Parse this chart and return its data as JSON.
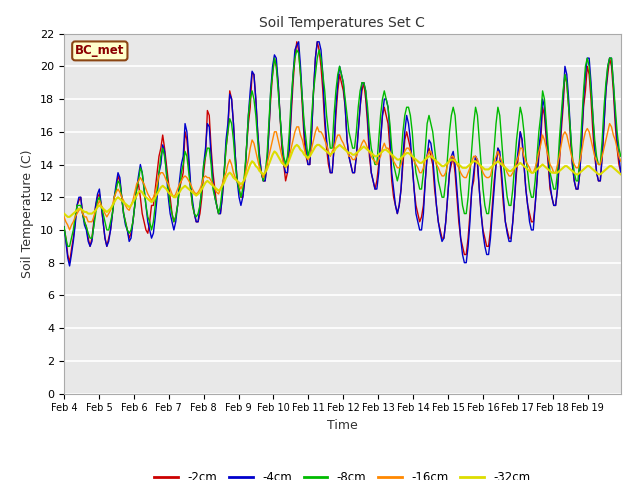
{
  "title": "Soil Temperatures Set C",
  "xlabel": "Time",
  "ylabel": "Soil Temperature (C)",
  "ylim": [
    0,
    22
  ],
  "yticks": [
    0,
    2,
    4,
    6,
    8,
    10,
    12,
    14,
    16,
    18,
    20,
    22
  ],
  "label_text": "BC_met",
  "fig_bg_color": "#ffffff",
  "plot_bg_color": "#e8e8e8",
  "line_colors": {
    "-2cm": "#cc0000",
    "-4cm": "#0000cc",
    "-8cm": "#00bb00",
    "-16cm": "#ff8800",
    "-32cm": "#dddd00"
  },
  "x_tick_labels": [
    "Feb 4",
    "Feb 5",
    "Feb 6",
    "Feb 7",
    "Feb 8",
    "Feb 9",
    "Feb 10",
    "Feb 11",
    "Feb 12",
    "Feb 13",
    "Feb 14",
    "Feb 15",
    "Feb 16",
    "Feb 17",
    "Feb 18",
    "Feb 19"
  ],
  "depth_2cm": [
    10.2,
    9.5,
    8.5,
    8.0,
    8.8,
    9.5,
    10.5,
    11.5,
    11.8,
    12.0,
    11.0,
    10.5,
    10.2,
    9.5,
    9.0,
    9.5,
    10.5,
    11.5,
    12.0,
    12.2,
    11.5,
    10.5,
    9.5,
    9.0,
    9.5,
    10.0,
    11.0,
    12.0,
    12.5,
    13.3,
    13.0,
    12.0,
    11.0,
    10.5,
    10.0,
    9.5,
    9.8,
    10.5,
    11.5,
    12.5,
    12.8,
    12.0,
    11.0,
    10.5,
    10.0,
    9.8,
    10.5,
    11.5,
    11.5,
    12.5,
    13.5,
    14.5,
    15.0,
    15.8,
    15.0,
    14.0,
    13.0,
    12.0,
    11.0,
    10.5,
    10.8,
    11.5,
    12.5,
    13.0,
    13.5,
    16.0,
    15.5,
    14.0,
    12.5,
    11.5,
    11.0,
    10.5,
    10.5,
    11.0,
    12.0,
    13.5,
    14.5,
    17.3,
    17.0,
    15.0,
    13.5,
    12.5,
    11.5,
    11.0,
    11.0,
    12.0,
    13.5,
    15.0,
    16.0,
    18.5,
    18.0,
    16.5,
    14.5,
    13.0,
    12.5,
    12.0,
    12.0,
    13.0,
    15.0,
    16.5,
    17.5,
    19.6,
    19.5,
    18.0,
    16.0,
    14.5,
    13.5,
    13.0,
    13.0,
    14.0,
    16.0,
    18.0,
    19.5,
    20.5,
    20.0,
    19.0,
    17.0,
    15.0,
    14.0,
    13.0,
    13.5,
    15.0,
    17.0,
    19.0,
    20.5,
    21.5,
    21.0,
    19.5,
    17.5,
    15.5,
    14.5,
    14.0,
    14.0,
    16.0,
    18.5,
    20.5,
    21.5,
    21.0,
    20.0,
    18.5,
    16.5,
    15.0,
    14.0,
    13.5,
    13.5,
    15.0,
    17.0,
    18.5,
    19.5,
    19.0,
    18.5,
    17.5,
    15.5,
    14.5,
    14.0,
    13.5,
    13.5,
    14.5,
    16.0,
    17.5,
    18.5,
    19.0,
    18.0,
    16.5,
    14.5,
    13.5,
    13.0,
    12.5,
    13.0,
    14.0,
    15.5,
    17.0,
    17.5,
    17.0,
    16.5,
    15.0,
    13.0,
    12.0,
    11.5,
    11.0,
    11.5,
    12.5,
    14.0,
    15.5,
    16.0,
    15.5,
    15.0,
    14.0,
    12.5,
    11.5,
    11.0,
    10.5,
    10.8,
    11.5,
    13.0,
    14.5,
    15.0,
    14.5,
    14.0,
    12.5,
    11.5,
    10.5,
    10.0,
    9.5,
    9.5,
    10.5,
    12.0,
    13.5,
    14.0,
    14.5,
    13.5,
    12.0,
    10.5,
    9.5,
    9.0,
    8.5,
    8.5,
    9.5,
    11.0,
    12.5,
    13.0,
    14.5,
    14.0,
    12.5,
    11.0,
    10.0,
    9.5,
    9.0,
    9.0,
    10.0,
    11.5,
    13.0,
    14.0,
    15.0,
    14.5,
    13.0,
    11.5,
    10.5,
    10.0,
    9.5,
    9.5,
    10.5,
    12.0,
    13.5,
    14.5,
    16.0,
    15.5,
    14.0,
    12.5,
    11.5,
    11.0,
    10.5,
    10.5,
    11.5,
    13.0,
    14.5,
    15.5,
    17.5,
    17.0,
    15.5,
    14.0,
    12.5,
    12.0,
    11.5,
    11.5,
    12.5,
    14.0,
    16.0,
    17.5,
    19.5,
    19.0,
    17.5,
    15.5,
    14.0,
    13.0,
    12.5,
    12.5,
    13.5,
    15.5,
    17.5,
    18.5,
    20.0,
    19.5,
    18.0,
    16.0,
    14.5,
    13.5,
    13.0,
    13.0,
    14.5,
    16.5,
    18.5,
    19.5,
    20.5,
    20.0,
    18.5,
    16.5,
    15.0,
    14.0,
    13.5
  ],
  "depth_4cm": [
    10.2,
    9.3,
    8.3,
    7.8,
    8.5,
    9.3,
    10.3,
    11.5,
    12.0,
    12.0,
    11.0,
    10.3,
    10.0,
    9.3,
    9.0,
    9.3,
    10.3,
    11.5,
    12.2,
    12.5,
    11.5,
    10.5,
    9.5,
    9.0,
    9.3,
    10.0,
    11.0,
    12.0,
    12.8,
    13.5,
    13.2,
    12.0,
    11.0,
    10.3,
    10.0,
    9.3,
    9.5,
    10.5,
    11.5,
    12.5,
    13.3,
    14.0,
    13.5,
    12.5,
    11.5,
    10.5,
    10.0,
    9.5,
    9.8,
    10.8,
    12.0,
    13.5,
    14.0,
    15.2,
    14.8,
    13.5,
    12.0,
    11.0,
    10.5,
    10.0,
    10.5,
    11.5,
    13.0,
    14.0,
    14.5,
    16.5,
    16.0,
    14.5,
    12.8,
    11.8,
    11.0,
    10.5,
    10.5,
    11.5,
    12.5,
    14.0,
    15.0,
    16.5,
    16.3,
    14.5,
    13.0,
    12.0,
    11.5,
    11.0,
    11.0,
    12.0,
    13.5,
    15.5,
    16.5,
    18.3,
    18.0,
    16.5,
    14.5,
    13.0,
    12.0,
    11.5,
    12.0,
    13.0,
    15.0,
    17.0,
    18.5,
    19.7,
    19.5,
    18.0,
    16.0,
    14.5,
    13.5,
    13.0,
    13.0,
    14.0,
    16.0,
    18.5,
    20.0,
    20.7,
    20.5,
    19.0,
    17.0,
    15.5,
    14.0,
    13.5,
    13.5,
    15.0,
    17.5,
    19.5,
    21.0,
    21.3,
    21.5,
    20.0,
    18.0,
    16.0,
    15.0,
    14.0,
    14.0,
    16.0,
    18.5,
    20.5,
    21.5,
    21.5,
    21.0,
    19.5,
    17.0,
    15.5,
    14.5,
    13.5,
    13.5,
    15.0,
    17.5,
    19.0,
    20.0,
    19.5,
    19.0,
    17.5,
    15.5,
    14.5,
    14.0,
    13.5,
    13.5,
    14.5,
    16.0,
    17.5,
    19.0,
    19.0,
    18.5,
    17.0,
    15.0,
    13.5,
    13.0,
    12.5,
    12.5,
    13.5,
    15.5,
    17.0,
    18.0,
    18.0,
    17.5,
    16.0,
    13.5,
    12.5,
    11.5,
    11.0,
    11.5,
    12.5,
    14.5,
    16.0,
    17.0,
    16.5,
    15.5,
    14.0,
    12.5,
    11.0,
    10.5,
    10.0,
    10.0,
    11.0,
    13.0,
    14.5,
    15.5,
    15.3,
    14.5,
    13.0,
    11.5,
    10.5,
    9.8,
    9.3,
    9.5,
    10.5,
    12.0,
    13.5,
    14.5,
    14.8,
    14.0,
    12.5,
    11.0,
    9.5,
    8.5,
    8.0,
    8.0,
    9.0,
    10.5,
    12.5,
    13.5,
    14.5,
    14.3,
    12.5,
    11.0,
    9.8,
    9.0,
    8.5,
    8.5,
    9.5,
    11.0,
    12.5,
    14.0,
    15.0,
    14.8,
    13.5,
    12.0,
    10.5,
    9.8,
    9.3,
    9.3,
    10.5,
    12.0,
    14.0,
    15.0,
    16.0,
    15.5,
    14.0,
    12.5,
    11.5,
    10.5,
    10.0,
    10.0,
    11.5,
    13.0,
    15.0,
    16.0,
    18.0,
    17.5,
    16.0,
    14.5,
    12.8,
    12.0,
    11.5,
    11.5,
    12.5,
    14.5,
    16.5,
    18.0,
    20.0,
    19.5,
    18.0,
    16.0,
    14.0,
    13.0,
    12.5,
    12.5,
    13.5,
    15.5,
    18.0,
    19.5,
    20.5,
    20.5,
    19.0,
    17.0,
    15.0,
    13.5,
    13.0,
    13.0,
    14.5,
    16.5,
    18.5,
    20.0,
    20.5,
    20.5,
    19.0,
    17.0,
    15.5,
    14.5,
    13.5
  ],
  "depth_8cm": [
    10.2,
    9.5,
    9.0,
    9.0,
    9.5,
    10.0,
    10.8,
    11.5,
    11.5,
    11.5,
    11.0,
    10.5,
    10.2,
    9.8,
    9.5,
    9.5,
    10.2,
    11.0,
    11.8,
    12.0,
    11.5,
    11.0,
    10.5,
    10.0,
    10.0,
    10.5,
    11.0,
    12.0,
    12.5,
    13.0,
    12.8,
    12.0,
    11.0,
    10.5,
    10.0,
    9.8,
    10.0,
    10.5,
    11.5,
    12.5,
    13.0,
    13.8,
    13.5,
    12.5,
    11.5,
    10.8,
    10.5,
    10.0,
    10.5,
    11.5,
    12.5,
    13.5,
    14.5,
    15.0,
    14.5,
    13.5,
    12.5,
    11.5,
    11.0,
    10.5,
    10.8,
    11.5,
    12.5,
    13.5,
    14.0,
    14.8,
    14.5,
    13.5,
    12.5,
    11.5,
    11.0,
    10.8,
    11.0,
    11.5,
    12.5,
    14.0,
    14.5,
    15.0,
    15.0,
    14.0,
    12.5,
    12.0,
    11.5,
    11.0,
    11.5,
    12.5,
    13.5,
    15.0,
    16.0,
    16.8,
    16.5,
    15.5,
    14.0,
    13.0,
    12.5,
    12.0,
    12.5,
    13.5,
    15.0,
    17.0,
    18.0,
    18.5,
    18.0,
    17.0,
    15.5,
    14.0,
    13.5,
    13.0,
    13.5,
    14.5,
    16.5,
    18.5,
    19.5,
    20.5,
    20.0,
    18.5,
    17.0,
    15.5,
    14.5,
    14.0,
    14.5,
    16.0,
    18.0,
    19.5,
    20.5,
    21.0,
    20.8,
    19.5,
    18.0,
    16.5,
    15.5,
    14.5,
    15.0,
    17.0,
    18.5,
    19.5,
    20.5,
    21.0,
    20.5,
    19.5,
    18.5,
    17.0,
    16.0,
    15.0,
    15.0,
    17.0,
    18.5,
    19.5,
    20.0,
    19.5,
    19.0,
    18.0,
    17.0,
    16.0,
    15.5,
    15.0,
    15.0,
    16.0,
    17.5,
    18.5,
    19.0,
    19.0,
    18.5,
    17.5,
    16.0,
    15.0,
    14.5,
    14.0,
    14.0,
    15.5,
    17.0,
    18.0,
    18.5,
    18.0,
    17.5,
    16.5,
    15.0,
    14.0,
    13.5,
    13.0,
    13.5,
    14.5,
    16.0,
    17.0,
    17.5,
    17.5,
    17.0,
    16.0,
    14.5,
    13.5,
    13.0,
    12.5,
    12.5,
    13.5,
    15.0,
    16.5,
    17.0,
    16.5,
    16.0,
    15.0,
    14.0,
    13.0,
    12.5,
    12.0,
    12.0,
    13.0,
    14.5,
    16.0,
    17.0,
    17.5,
    17.0,
    15.5,
    14.0,
    12.5,
    11.5,
    11.0,
    11.0,
    12.0,
    13.5,
    15.0,
    16.5,
    17.5,
    17.0,
    15.5,
    14.0,
    12.5,
    11.5,
    11.0,
    11.0,
    12.0,
    13.5,
    15.0,
    16.5,
    17.5,
    17.0,
    15.5,
    14.0,
    13.0,
    12.0,
    11.5,
    11.5,
    12.5,
    14.0,
    15.5,
    16.5,
    17.5,
    17.0,
    16.0,
    14.5,
    13.5,
    12.5,
    12.0,
    12.0,
    13.0,
    14.5,
    16.0,
    17.0,
    18.5,
    18.0,
    16.5,
    15.0,
    13.5,
    13.0,
    12.5,
    12.5,
    13.5,
    15.5,
    17.0,
    18.5,
    19.5,
    19.0,
    17.5,
    16.0,
    14.5,
    13.5,
    13.0,
    13.0,
    14.5,
    16.5,
    18.5,
    20.0,
    20.5,
    20.0,
    18.5,
    17.0,
    15.5,
    14.5,
    14.0,
    14.0,
    15.5,
    17.5,
    19.0,
    20.0,
    20.5,
    20.5,
    19.0,
    17.5,
    16.0,
    15.0,
    14.5
  ],
  "depth_16cm": [
    10.8,
    10.5,
    10.3,
    10.0,
    10.3,
    10.5,
    10.8,
    11.0,
    11.2,
    11.3,
    11.0,
    10.8,
    10.8,
    10.5,
    10.5,
    10.5,
    10.8,
    11.2,
    11.5,
    11.8,
    11.5,
    11.3,
    11.0,
    10.8,
    11.0,
    11.2,
    11.5,
    12.0,
    12.3,
    12.5,
    12.3,
    12.0,
    11.8,
    11.5,
    11.3,
    11.2,
    11.5,
    11.8,
    12.3,
    12.8,
    13.0,
    13.2,
    13.0,
    12.8,
    12.5,
    12.2,
    12.0,
    11.8,
    12.0,
    12.3,
    12.8,
    13.3,
    13.5,
    13.5,
    13.3,
    13.0,
    12.8,
    12.5,
    12.2,
    12.0,
    12.2,
    12.5,
    12.8,
    13.0,
    13.2,
    13.3,
    13.2,
    13.0,
    12.8,
    12.5,
    12.3,
    12.2,
    12.3,
    12.5,
    12.8,
    13.2,
    13.3,
    13.2,
    13.2,
    13.0,
    12.8,
    12.5,
    12.3,
    12.2,
    12.5,
    12.8,
    13.2,
    13.5,
    14.0,
    14.3,
    14.0,
    13.5,
    13.2,
    13.0,
    12.8,
    12.5,
    12.8,
    13.2,
    13.8,
    14.3,
    15.0,
    15.5,
    15.3,
    14.8,
    14.3,
    13.8,
    13.5,
    13.2,
    13.5,
    14.0,
    14.5,
    15.0,
    15.5,
    16.0,
    16.0,
    15.5,
    15.0,
    14.5,
    14.0,
    13.8,
    14.0,
    14.5,
    15.0,
    15.5,
    16.0,
    16.3,
    16.3,
    15.8,
    15.5,
    15.0,
    14.5,
    14.3,
    14.5,
    15.0,
    15.5,
    16.0,
    16.3,
    16.0,
    16.0,
    15.8,
    15.5,
    15.2,
    14.8,
    14.5,
    14.8,
    15.0,
    15.5,
    15.8,
    15.8,
    15.5,
    15.3,
    15.0,
    14.8,
    14.5,
    14.5,
    14.3,
    14.3,
    14.5,
    14.8,
    15.0,
    15.3,
    15.5,
    15.3,
    15.0,
    14.8,
    14.5,
    14.3,
    14.2,
    14.0,
    14.3,
    14.5,
    15.0,
    15.3,
    15.0,
    15.0,
    14.8,
    14.5,
    14.2,
    14.0,
    13.8,
    13.8,
    14.0,
    14.5,
    14.8,
    15.0,
    15.0,
    14.8,
    14.5,
    14.2,
    14.0,
    13.8,
    13.5,
    13.5,
    13.8,
    14.3,
    14.5,
    14.8,
    14.8,
    14.5,
    14.3,
    14.0,
    13.8,
    13.5,
    13.3,
    13.3,
    13.5,
    14.0,
    14.3,
    14.5,
    14.5,
    14.3,
    14.0,
    13.8,
    13.5,
    13.3,
    13.2,
    13.2,
    13.5,
    13.8,
    14.2,
    14.5,
    14.5,
    14.3,
    14.0,
    13.8,
    13.5,
    13.3,
    13.2,
    13.2,
    13.3,
    13.8,
    14.2,
    14.5,
    14.8,
    14.5,
    14.2,
    14.0,
    13.8,
    13.5,
    13.3,
    13.3,
    13.5,
    13.8,
    14.2,
    14.5,
    15.0,
    15.0,
    14.5,
    14.2,
    14.0,
    13.8,
    13.5,
    13.5,
    13.8,
    14.2,
    14.8,
    15.2,
    15.8,
    15.5,
    15.0,
    14.5,
    14.0,
    13.8,
    13.5,
    13.5,
    14.0,
    14.5,
    15.2,
    15.8,
    16.0,
    15.8,
    15.3,
    14.8,
    14.3,
    14.0,
    13.8,
    13.8,
    14.2,
    14.8,
    15.5,
    16.0,
    16.2,
    16.0,
    15.5,
    15.0,
    14.5,
    14.2,
    14.0,
    14.0,
    14.5,
    15.0,
    15.5,
    16.0,
    16.5,
    16.3,
    15.8,
    15.5,
    15.0,
    14.5,
    14.2
  ],
  "depth_32cm": [
    11.0,
    10.9,
    10.8,
    10.8,
    10.9,
    11.0,
    11.1,
    11.2,
    11.3,
    11.3,
    11.2,
    11.1,
    11.1,
    11.0,
    11.0,
    11.0,
    11.1,
    11.2,
    11.4,
    11.5,
    11.4,
    11.3,
    11.2,
    11.1,
    11.2,
    11.3,
    11.5,
    11.7,
    11.9,
    12.0,
    11.9,
    11.8,
    11.7,
    11.6,
    11.5,
    11.4,
    11.5,
    11.7,
    11.9,
    12.1,
    12.3,
    12.4,
    12.3,
    12.1,
    12.0,
    11.9,
    11.8,
    11.7,
    11.8,
    12.0,
    12.2,
    12.4,
    12.6,
    12.7,
    12.6,
    12.5,
    12.3,
    12.2,
    12.1,
    12.0,
    12.0,
    12.2,
    12.3,
    12.5,
    12.6,
    12.7,
    12.6,
    12.5,
    12.4,
    12.3,
    12.2,
    12.1,
    12.2,
    12.3,
    12.5,
    12.7,
    12.9,
    13.0,
    12.9,
    12.8,
    12.7,
    12.6,
    12.5,
    12.4,
    12.5,
    12.7,
    12.9,
    13.2,
    13.4,
    13.5,
    13.4,
    13.2,
    13.1,
    13.0,
    12.9,
    12.8,
    12.9,
    13.1,
    13.4,
    13.7,
    14.0,
    14.2,
    14.1,
    13.9,
    13.8,
    13.6,
    13.5,
    13.4,
    13.5,
    13.7,
    14.0,
    14.3,
    14.6,
    14.8,
    14.7,
    14.5,
    14.3,
    14.1,
    14.0,
    13.9,
    14.0,
    14.3,
    14.6,
    14.9,
    15.1,
    15.2,
    15.1,
    14.9,
    14.8,
    14.6,
    14.5,
    14.4,
    14.5,
    14.7,
    14.9,
    15.1,
    15.2,
    15.2,
    15.1,
    15.0,
    14.9,
    14.8,
    14.7,
    14.6,
    14.7,
    14.8,
    15.0,
    15.1,
    15.2,
    15.1,
    15.0,
    14.9,
    14.8,
    14.7,
    14.7,
    14.6,
    14.6,
    14.7,
    14.8,
    14.9,
    15.0,
    15.1,
    15.0,
    14.9,
    14.8,
    14.7,
    14.6,
    14.5,
    14.5,
    14.6,
    14.7,
    14.8,
    14.9,
    14.9,
    14.8,
    14.7,
    14.6,
    14.5,
    14.4,
    14.3,
    14.3,
    14.4,
    14.5,
    14.6,
    14.7,
    14.7,
    14.6,
    14.5,
    14.4,
    14.3,
    14.2,
    14.1,
    14.1,
    14.2,
    14.3,
    14.4,
    14.5,
    14.5,
    14.4,
    14.3,
    14.2,
    14.1,
    14.0,
    13.9,
    13.9,
    14.0,
    14.1,
    14.2,
    14.3,
    14.3,
    14.2,
    14.1,
    14.0,
    13.9,
    13.8,
    13.8,
    13.8,
    13.9,
    14.0,
    14.1,
    14.2,
    14.2,
    14.1,
    14.0,
    13.9,
    13.8,
    13.7,
    13.7,
    13.7,
    13.8,
    13.9,
    14.0,
    14.1,
    14.2,
    14.1,
    14.0,
    13.9,
    13.8,
    13.7,
    13.6,
    13.6,
    13.7,
    13.8,
    13.9,
    14.0,
    14.1,
    14.0,
    13.9,
    13.8,
    13.7,
    13.6,
    13.5,
    13.5,
    13.6,
    13.7,
    13.8,
    13.9,
    14.0,
    13.9,
    13.8,
    13.7,
    13.6,
    13.5,
    13.5,
    13.5,
    13.5,
    13.6,
    13.7,
    13.8,
    13.9,
    13.9,
    13.8,
    13.7,
    13.6,
    13.5,
    13.4,
    13.4,
    13.5,
    13.6,
    13.7,
    13.8,
    13.9,
    13.9,
    13.8,
    13.7,
    13.6,
    13.5,
    13.4,
    13.4,
    13.5,
    13.6,
    13.7,
    13.8,
    13.9,
    13.9,
    13.8,
    13.7,
    13.6,
    13.5,
    13.4
  ]
}
